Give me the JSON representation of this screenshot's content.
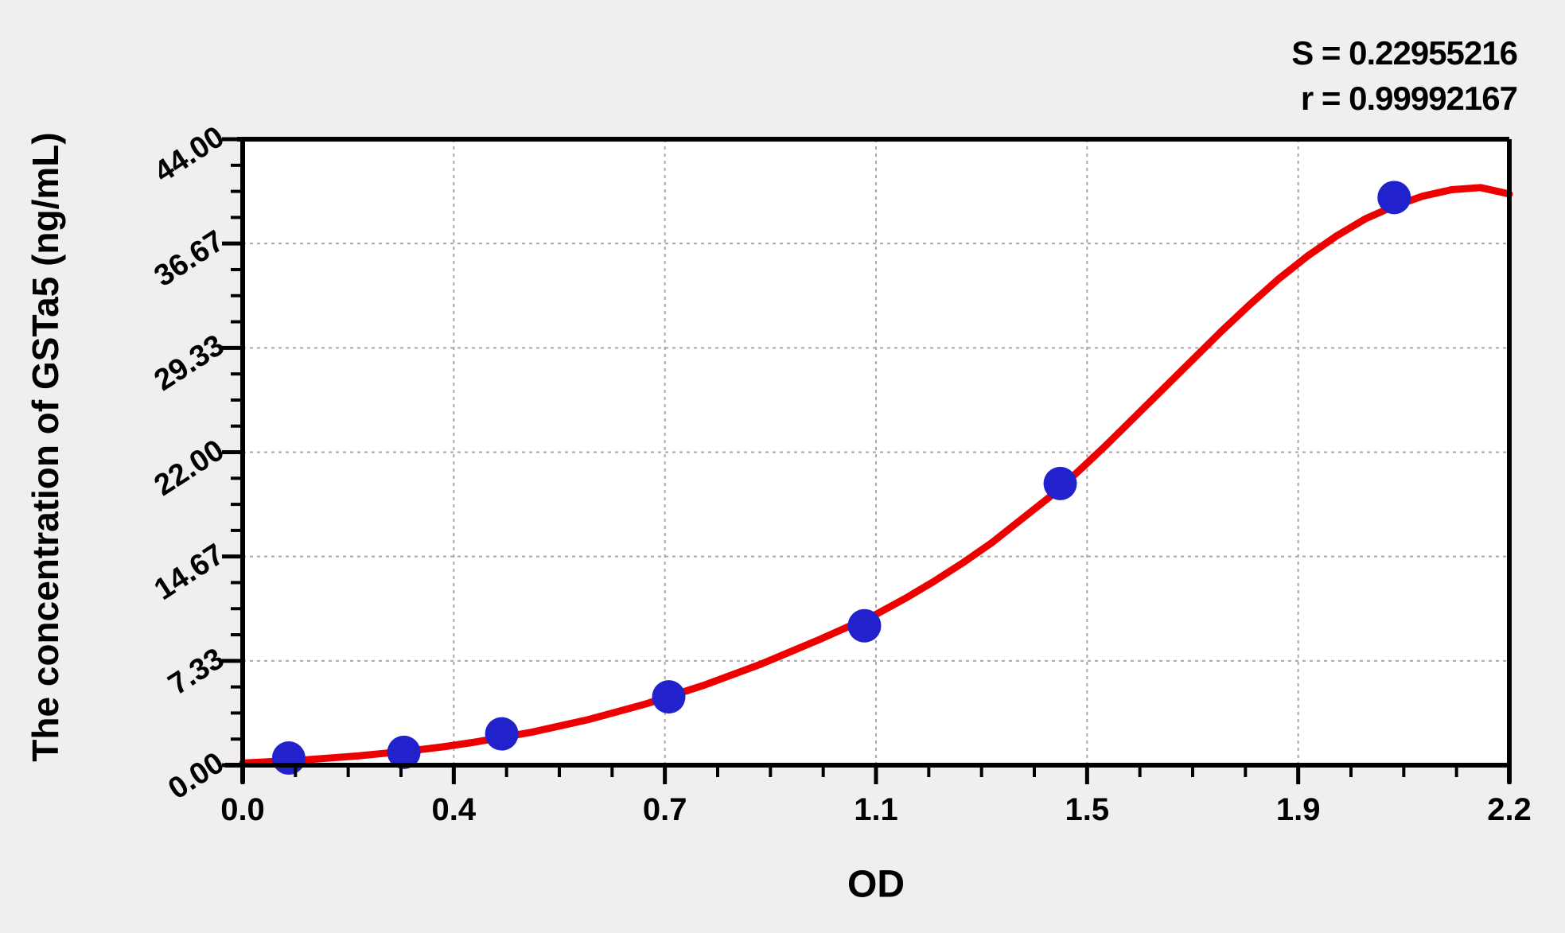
{
  "page": {
    "background_color": "#f0efee",
    "plot_background_color": "#ffffff"
  },
  "stats": {
    "s": "S = 0.22955216",
    "r": "r = 0.99992167"
  },
  "chart_data": {
    "type": "scatter",
    "title": "",
    "xlabel": "OD",
    "ylabel": "The concentration of GSTa5 (ng/mL)",
    "xlim": [
      0,
      2.2
    ],
    "ylim": [
      0,
      44.0
    ],
    "x_tick_labels": [
      "0.0",
      "0.4",
      "0.7",
      "1.1",
      "1.5",
      "1.9",
      "2.2"
    ],
    "y_tick_labels": [
      "0.00",
      "7.33",
      "14.67",
      "22.00",
      "29.33",
      "36.67",
      "44.00"
    ],
    "minor_ticks_per_major": 3,
    "grid": true,
    "grid_style": "dashed",
    "legend_position": "none",
    "points": [
      {
        "od": 0.08,
        "conc": 0.5
      },
      {
        "od": 0.28,
        "conc": 0.9
      },
      {
        "od": 0.45,
        "conc": 2.2
      },
      {
        "od": 0.74,
        "conc": 4.8
      },
      {
        "od": 1.08,
        "conc": 9.8
      },
      {
        "od": 1.42,
        "conc": 19.8
      },
      {
        "od": 2.0,
        "conc": 39.9
      }
    ],
    "fit_curve": {
      "od": [
        0.0,
        0.05,
        0.1,
        0.15,
        0.2,
        0.25,
        0.3,
        0.35,
        0.4,
        0.45,
        0.5,
        0.55,
        0.6,
        0.65,
        0.7,
        0.75,
        0.8,
        0.85,
        0.9,
        0.95,
        1.0,
        1.05,
        1.1,
        1.15,
        1.2,
        1.25,
        1.3,
        1.35,
        1.4,
        1.45,
        1.5,
        1.55,
        1.6,
        1.65,
        1.7,
        1.75,
        1.8,
        1.85,
        1.9,
        1.95,
        2.0,
        2.05,
        2.1,
        2.15,
        2.2
      ],
      "conc": [
        0.15,
        0.25,
        0.35,
        0.5,
        0.65,
        0.85,
        1.05,
        1.3,
        1.6,
        1.95,
        2.3,
        2.75,
        3.2,
        3.75,
        4.3,
        4.95,
        5.6,
        6.35,
        7.1,
        7.95,
        8.8,
        9.7,
        10.6,
        11.7,
        12.9,
        14.2,
        15.6,
        17.2,
        18.8,
        20.6,
        22.5,
        24.5,
        26.5,
        28.5,
        30.5,
        32.4,
        34.2,
        35.8,
        37.2,
        38.4,
        39.3,
        40.0,
        40.45,
        40.6,
        40.15
      ]
    },
    "colors": {
      "curve": "#ee0000",
      "point": "#2222cc",
      "grid": "#a8a8a8",
      "axis": "#000000"
    }
  }
}
